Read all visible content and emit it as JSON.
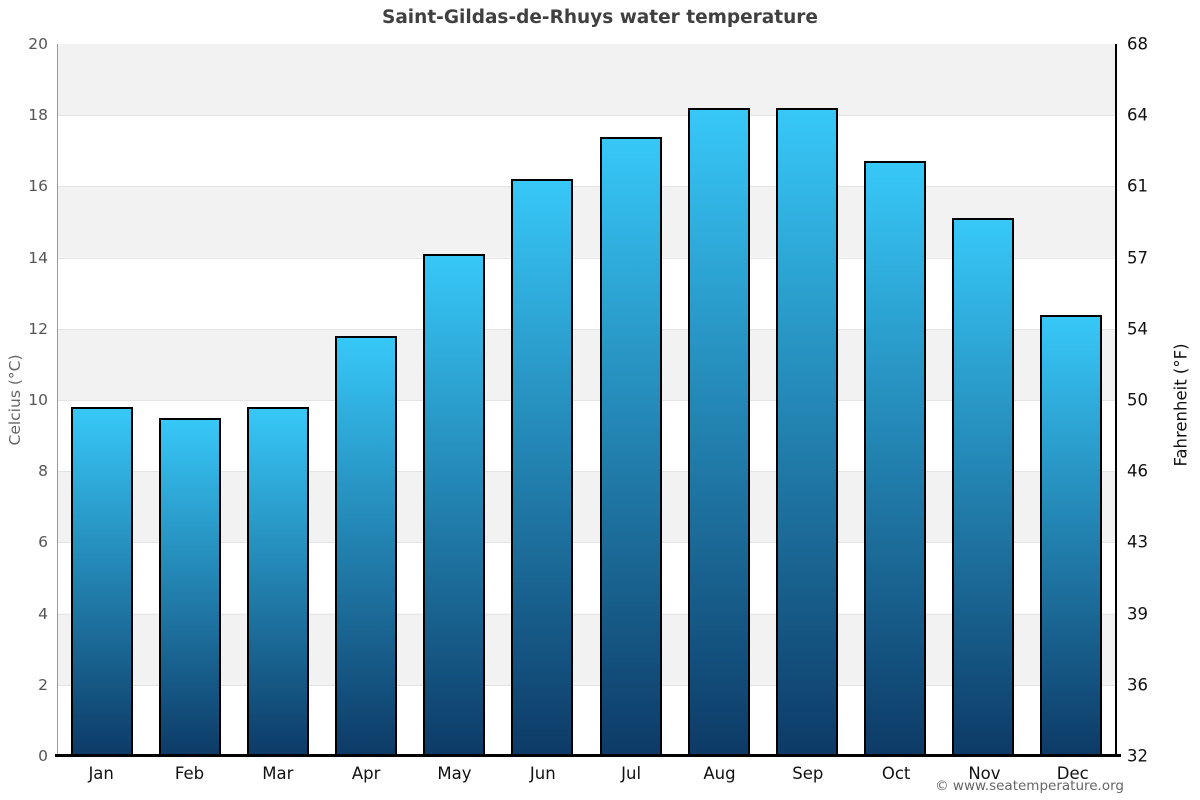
{
  "title": "Saint-Gildas-de-Rhuys water temperature",
  "chart_data": {
    "type": "bar",
    "title": "Saint-Gildas-de-Rhuys water temperature",
    "categories": [
      "Jan",
      "Feb",
      "Mar",
      "Apr",
      "May",
      "Jun",
      "Jul",
      "Aug",
      "Sep",
      "Oct",
      "Nov",
      "Dec"
    ],
    "values": [
      9.8,
      9.5,
      9.8,
      11.8,
      14.1,
      16.2,
      17.4,
      18.2,
      18.2,
      16.7,
      15.1,
      12.4
    ],
    "xlabel": "",
    "ylabel_left": "Celcius (°C)",
    "ylabel_right": "Fahrenheit (°F)",
    "ylim": [
      0,
      20
    ],
    "celsius_ticks": [
      20,
      18,
      16,
      14,
      12,
      10,
      8,
      6,
      4,
      2,
      0
    ],
    "fahrenheit_tick_labels": [
      "68",
      "64",
      "61",
      "57",
      "54",
      "50",
      "46",
      "43",
      "39",
      "36",
      "32"
    ],
    "grid": "horizontal alternating bands, gridline every 2°C",
    "legend": "none",
    "colors": {
      "bar_gradient_top": "#37c8f8",
      "bar_gradient_bottom": "#0d3a66",
      "bar_border": "#000000",
      "band_gray": "#f2f2f2",
      "band_white": "#ffffff",
      "title_color": "#404040"
    }
  },
  "footer": {
    "copyright": "© www.seatemperature.org"
  }
}
